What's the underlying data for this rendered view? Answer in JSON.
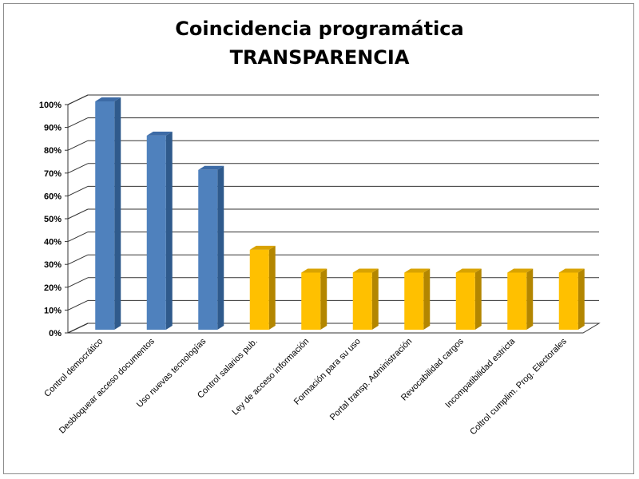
{
  "chart_data": {
    "type": "bar",
    "title": "Coincidencia programática",
    "subtitle": "TRANSPARENCIA",
    "categories": [
      "Control democrático",
      "Desbloquear acceso documentos",
      "Uso nuevas tecnologías",
      "Control salarios pub.",
      "Ley de acceso información",
      "Formación para su uso",
      "Portal transp. Administración",
      "Revocabilidad cargos",
      "Incompatibilidad estricta",
      "Coltrol cumplim. Prog. Electorales"
    ],
    "values": [
      100,
      85,
      70,
      35,
      25,
      25,
      25,
      25,
      25,
      25
    ],
    "ylim": [
      0,
      100
    ],
    "yticks": [
      "0%",
      "10%",
      "20%",
      "30%",
      "40%",
      "50%",
      "60%",
      "70%",
      "80%",
      "90%",
      "100%"
    ],
    "grid": true,
    "legend": "none",
    "three_d": true,
    "colors": {
      "blue_front": "#4f81bd",
      "blue_side": "#2f5a8c",
      "blue_top": "#3d6ba6",
      "yellow_front": "#ffc000",
      "yellow_side": "#b38600",
      "yellow_top": "#d9a300",
      "gridline": "#333333"
    },
    "bar_colors": [
      "blue",
      "blue",
      "blue",
      "yellow",
      "yellow",
      "yellow",
      "yellow",
      "yellow",
      "yellow",
      "yellow"
    ]
  }
}
